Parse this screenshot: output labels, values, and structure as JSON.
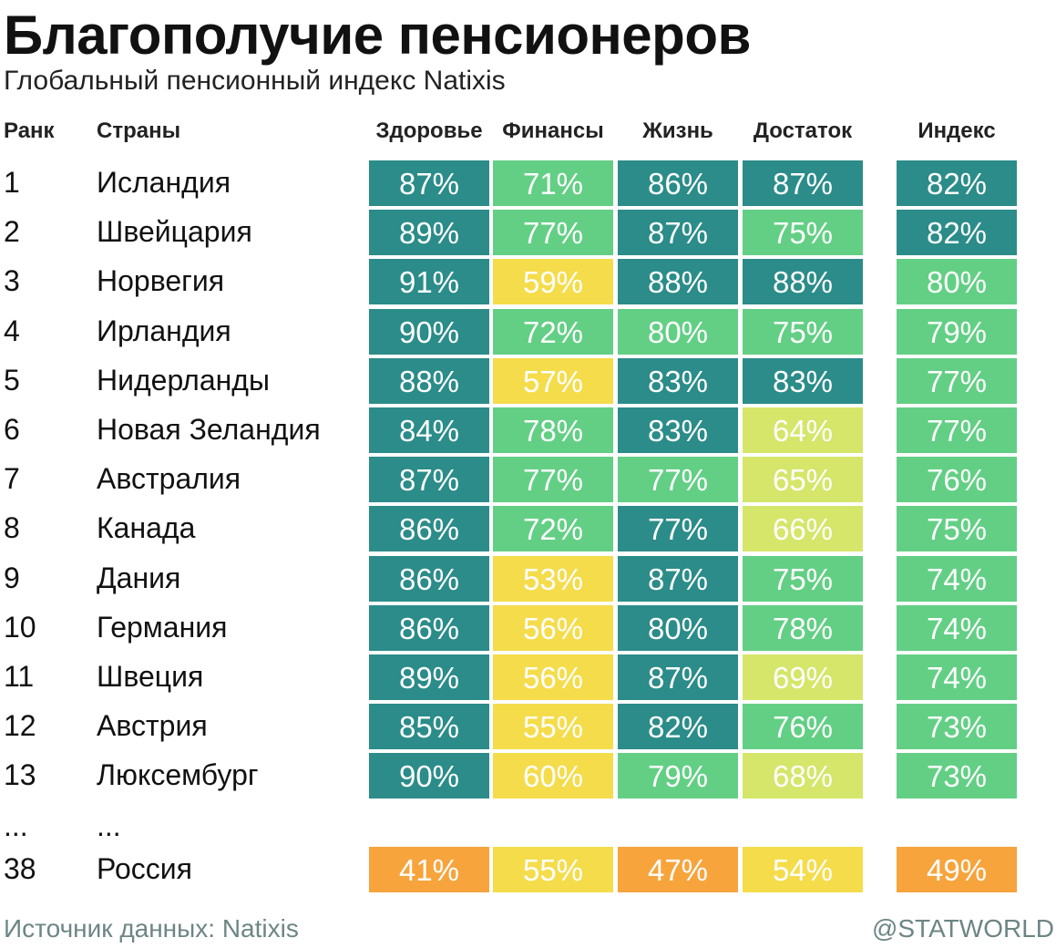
{
  "title": "Благополучие пенсионеров",
  "subtitle": "Глобальный пенсионный индекс Natixis",
  "headers": {
    "rank": "Ранк",
    "country": "Страны",
    "cols": [
      "Здоровье",
      "Финансы",
      "Жизнь",
      "Достаток",
      "Индекс"
    ]
  },
  "colors": {
    "T": "#2b8c89",
    "G": "#63cf85",
    "L": "#d5e66a",
    "Y": "#f5dc4b",
    "O": "#f7a43c"
  },
  "chart_data": {
    "type": "heatmap",
    "columns": [
      "Здоровье",
      "Финансы",
      "Жизнь",
      "Достаток",
      "Индекс"
    ],
    "rows": [
      {
        "rank": "1",
        "country": "Исландия",
        "values": [
          "87%",
          "71%",
          "86%",
          "87%",
          "82%"
        ],
        "colors": "TGTTT"
      },
      {
        "rank": "2",
        "country": "Швейцария",
        "values": [
          "89%",
          "77%",
          "87%",
          "75%",
          "82%"
        ],
        "colors": "TGTGT"
      },
      {
        "rank": "3",
        "country": "Норвегия",
        "values": [
          "91%",
          "59%",
          "88%",
          "88%",
          "80%"
        ],
        "colors": "TYTTG"
      },
      {
        "rank": "4",
        "country": "Ирландия",
        "values": [
          "90%",
          "72%",
          "80%",
          "75%",
          "79%"
        ],
        "colors": "TGGGG"
      },
      {
        "rank": "5",
        "country": "Нидерланды",
        "values": [
          "88%",
          "57%",
          "83%",
          "83%",
          "77%"
        ],
        "colors": "TYTTG"
      },
      {
        "rank": "6",
        "country": "Новая Зеландия",
        "values": [
          "84%",
          "78%",
          "83%",
          "64%",
          "77%"
        ],
        "colors": "TGTLG"
      },
      {
        "rank": "7",
        "country": "Австралия",
        "values": [
          "87%",
          "77%",
          "77%",
          "65%",
          "76%"
        ],
        "colors": "TGGLG"
      },
      {
        "rank": "8",
        "country": "Канада",
        "values": [
          "86%",
          "72%",
          "77%",
          "66%",
          "75%"
        ],
        "colors": "TGTLG"
      },
      {
        "rank": "9",
        "country": "Дания",
        "values": [
          "86%",
          "53%",
          "87%",
          "75%",
          "74%"
        ],
        "colors": "TYTGG"
      },
      {
        "rank": "10",
        "country": "Германия",
        "values": [
          "86%",
          "56%",
          "80%",
          "78%",
          "74%"
        ],
        "colors": "TYTGG"
      },
      {
        "rank": "11",
        "country": "Швеция",
        "values": [
          "89%",
          "56%",
          "87%",
          "69%",
          "74%"
        ],
        "colors": "TYTLG"
      },
      {
        "rank": "12",
        "country": "Австрия",
        "values": [
          "85%",
          "55%",
          "82%",
          "76%",
          "73%"
        ],
        "colors": "TYTGG"
      },
      {
        "rank": "13",
        "country": "Люксембург",
        "values": [
          "90%",
          "60%",
          "79%",
          "68%",
          "73%"
        ],
        "colors": "TYGLG"
      },
      {
        "rank": "38",
        "country": "Россия",
        "values": [
          "41%",
          "55%",
          "47%",
          "54%",
          "49%"
        ],
        "colors": "OYOYO"
      }
    ]
  },
  "ellipsis": {
    "rank": "...",
    "country": "..."
  },
  "footer": {
    "source": "Источник данных: Natixis",
    "brand": "@STATWORLD"
  }
}
